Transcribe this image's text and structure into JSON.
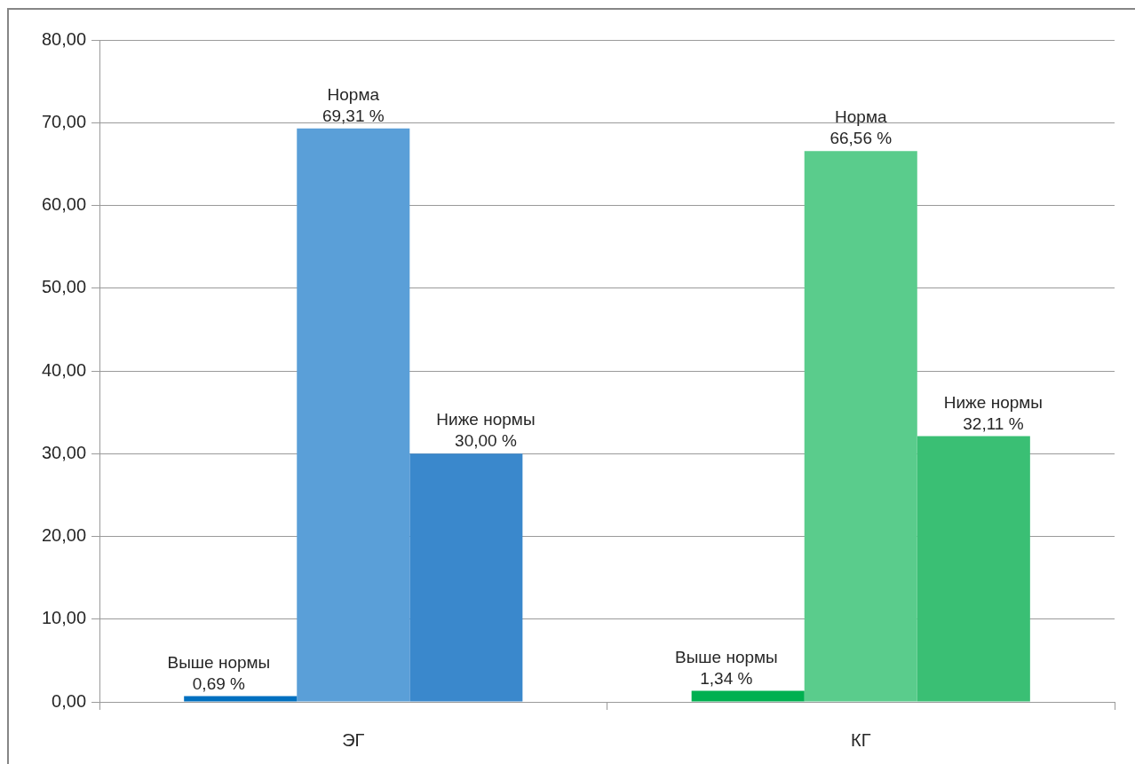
{
  "chart_data": {
    "type": "bar",
    "categories": [
      "ЭГ",
      "КГ"
    ],
    "series": [
      {
        "name": "Выше нормы",
        "colors": [
          "#0070c0",
          "#00b050"
        ],
        "values": [
          0.69,
          1.34
        ],
        "value_labels": [
          "0,69 %",
          "1,34 %"
        ]
      },
      {
        "name": "Норма",
        "colors": [
          "#5a9fd8",
          "#5acc8c"
        ],
        "values": [
          69.31,
          66.56
        ],
        "value_labels": [
          "69,31 %",
          "66,56 %"
        ]
      },
      {
        "name": "Ниже нормы",
        "colors": [
          "#3a88cc",
          "#3abf74"
        ],
        "values": [
          30.0,
          32.11
        ],
        "value_labels": [
          "30,00 %",
          "32,11 %"
        ]
      }
    ],
    "ylim": [
      0,
      80
    ],
    "yticks": [
      {
        "value": 0,
        "label": "0,00"
      },
      {
        "value": 10,
        "label": "10,00"
      },
      {
        "value": 20,
        "label": "20,00"
      },
      {
        "value": 30,
        "label": "30,00"
      },
      {
        "value": 40,
        "label": "40,00"
      },
      {
        "value": 50,
        "label": "50,00"
      },
      {
        "value": 60,
        "label": "60,00"
      },
      {
        "value": 70,
        "label": "70,00"
      },
      {
        "value": 80,
        "label": "80,00"
      }
    ],
    "grid": "y"
  }
}
